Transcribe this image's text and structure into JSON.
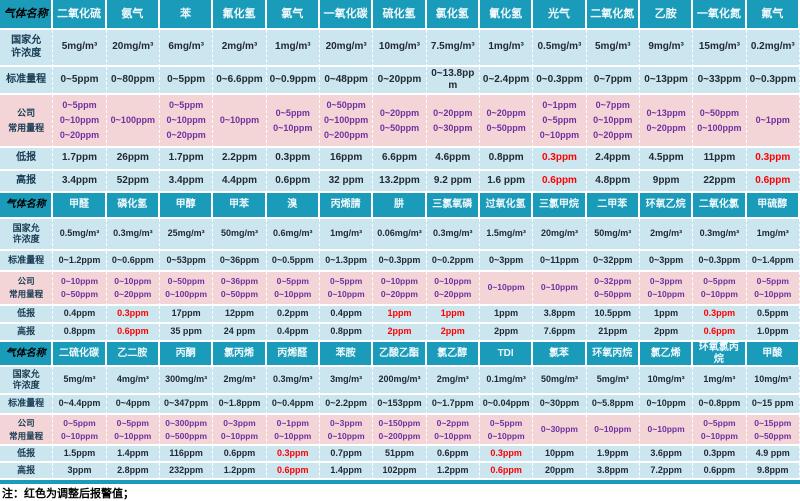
{
  "note": "注：红色为调整后报警值；",
  "colors": {
    "header_teal": "#1b9bba",
    "row_blue": "#cce6ef",
    "row_pink": "#f4d5d7",
    "range_purple": "#7030a0",
    "alarm_red": "#ff0000"
  },
  "row_labels": {
    "gas_name": "气体名称",
    "national": [
      "国家允",
      "许浓度"
    ],
    "standard": [
      "标准量程"
    ],
    "company": [
      "公司",
      "常用量程"
    ],
    "low": [
      "低报"
    ],
    "high": [
      "高报"
    ]
  },
  "sections": [
    {
      "gases": [
        {
          "name": "二氧化硫",
          "national": "5mg/m³",
          "standard": "0~5ppm",
          "company": [
            "0~5ppm",
            "0~10ppm",
            "0~20ppm"
          ],
          "low": "1.7ppm",
          "low_red": false,
          "high": "3.4ppm",
          "high_red": false
        },
        {
          "name": "氨气",
          "national": "20mg/m³",
          "standard": "0~80ppm",
          "company": [
            "0~100ppm"
          ],
          "low": "26ppm",
          "low_red": false,
          "high": "52ppm",
          "high_red": false
        },
        {
          "name": "苯",
          "national": "6mg/m³",
          "standard": "0~5ppm",
          "company": [
            "0~5ppm",
            "0~10ppm",
            "0~20ppm"
          ],
          "low": "1.7ppm",
          "low_red": false,
          "high": "3.4ppm",
          "high_red": false
        },
        {
          "name": "氟化氢",
          "national": "2mg/m³",
          "standard": "0~6.6ppm",
          "company": [
            "0~10ppm"
          ],
          "low": "2.2ppm",
          "low_red": false,
          "high": "4.4ppm",
          "high_red": false
        },
        {
          "name": "氯气",
          "national": "1mg/m³",
          "standard": "0~0.9ppm",
          "company": [
            "0~5ppm",
            "0~10ppm"
          ],
          "low": "0.3ppm",
          "low_red": false,
          "high": "0.6ppm",
          "high_red": false
        },
        {
          "name": "一氧化碳",
          "national": "20mg/m³",
          "standard": "0~48ppm",
          "company": [
            "0~50ppm",
            "0~100ppm",
            "0~200ppm"
          ],
          "low": "16ppm",
          "low_red": false,
          "high": "32 ppm",
          "high_red": false
        },
        {
          "name": "硫化氢",
          "national": "10mg/m³",
          "standard": "0~20ppm",
          "company": [
            "0~20ppm",
            "0~50ppm"
          ],
          "low": "6.6ppm",
          "low_red": false,
          "high": "13.2ppm",
          "high_red": false
        },
        {
          "name": "氯化氢",
          "national": "7.5mg/m³",
          "standard": "0~13.8ppm",
          "company": [
            "0~20ppm",
            "0~30ppm"
          ],
          "low": "4.6ppm",
          "low_red": false,
          "high": "9.2 ppm",
          "high_red": false
        },
        {
          "name": "氰化氢",
          "national": "1mg/m³",
          "standard": "0~2.4ppm",
          "company": [
            "0~20ppm",
            "0~50ppm"
          ],
          "low": "0.8ppm",
          "low_red": false,
          "high": "1.6 ppm",
          "high_red": false
        },
        {
          "name": "光气",
          "national": "0.5mg/m³",
          "standard": "0~0.3ppm",
          "company": [
            "0~1ppm",
            "0~5ppm",
            "0~10ppm"
          ],
          "low": "0.3ppm",
          "low_red": true,
          "high": "0.6ppm",
          "high_red": true
        },
        {
          "name": "二氧化氮",
          "national": "5mg/m³",
          "standard": "0~7ppm",
          "company": [
            "0~7ppm",
            "0~10ppm",
            "0~20ppm"
          ],
          "low": "2.4ppm",
          "low_red": false,
          "high": "4.8ppm",
          "high_red": false
        },
        {
          "name": "乙胺",
          "national": "9mg/m³",
          "standard": "0~13ppm",
          "company": [
            "0~13ppm",
            "0~20ppm"
          ],
          "low": "4.5ppm",
          "low_red": false,
          "high": "9ppm",
          "high_red": false
        },
        {
          "name": "一氧化氮",
          "national": "15mg/m³",
          "standard": "0~33ppm",
          "company": [
            "0~50ppm",
            "0~100ppm"
          ],
          "low": "11ppm",
          "low_red": false,
          "high": "22ppm",
          "high_red": false
        },
        {
          "name": "氟气",
          "national": "0.2mg/m³",
          "standard": "0~0.3ppm",
          "company": [
            "0~1ppm"
          ],
          "low": "0.3ppm",
          "low_red": true,
          "high": "0.6ppm",
          "high_red": true
        }
      ]
    },
    {
      "gases": [
        {
          "name": "甲醛",
          "national": "0.5mg/m³",
          "standard": "0~1.2ppm",
          "company": [
            "0~10ppm",
            "0~50ppm"
          ],
          "low": "0.4ppm",
          "low_red": false,
          "high": "0.8ppm",
          "high_red": false
        },
        {
          "name": "磷化氢",
          "national": "0.3mg/m³",
          "standard": "0~0.6ppm",
          "company": [
            "0~10ppm",
            "0~20ppm"
          ],
          "low": "0.3ppm",
          "low_red": true,
          "high": "0.6ppm",
          "high_red": true
        },
        {
          "name": "甲醇",
          "national": "25mg/m³",
          "standard": "0~53ppm",
          "company": [
            "0~50ppm",
            "0~100ppm"
          ],
          "low": "17ppm",
          "low_red": false,
          "high": "35 ppm",
          "high_red": false
        },
        {
          "name": "甲苯",
          "national": "50mg/m³",
          "standard": "0~36ppm",
          "company": [
            "0~36ppm",
            "0~50ppm"
          ],
          "low": "12ppm",
          "low_red": false,
          "high": "24 ppm",
          "high_red": false
        },
        {
          "name": "溴",
          "national": "0.6mg/m³",
          "standard": "0~0.5ppm",
          "company": [
            "0~5ppm",
            "0~10ppm"
          ],
          "low": "0.2ppm",
          "low_red": false,
          "high": "0.4ppm",
          "high_red": false
        },
        {
          "name": "丙烯腈",
          "national": "1mg/m³",
          "standard": "0~1.3ppm",
          "company": [
            "0~5ppm",
            "0~10ppm"
          ],
          "low": "0.4ppm",
          "low_red": false,
          "high": "0.8ppm",
          "high_red": false
        },
        {
          "name": "肼",
          "national": "0.06mg/m³",
          "standard": "0~0.3ppm",
          "company": [
            "0~10ppm",
            "0~20ppm"
          ],
          "low": "1ppm",
          "low_red": true,
          "high": "2ppm",
          "high_red": true
        },
        {
          "name": "三氯氧磷",
          "national": "0.3mg/m³",
          "standard": "0~0.2ppm",
          "company": [
            "0~10ppm",
            "0~20ppm"
          ],
          "low": "1ppm",
          "low_red": true,
          "high": "2ppm",
          "high_red": true
        },
        {
          "name": "过氧化氢",
          "national": "1.5mg/m³",
          "standard": "0~3ppm",
          "company": [
            "0~10ppm"
          ],
          "low": "1ppm",
          "low_red": false,
          "high": "2ppm",
          "high_red": false
        },
        {
          "name": "三氯甲烷",
          "national": "20mg/m³",
          "standard": "0~11ppm",
          "company": [
            "0~10ppm"
          ],
          "low": "3.8ppm",
          "low_red": false,
          "high": "7.6ppm",
          "high_red": false
        },
        {
          "name": "二甲苯",
          "national": "50mg/m³",
          "standard": "0~32ppm",
          "company": [
            "0~32ppm",
            "0~50ppm"
          ],
          "low": "10.5ppm",
          "low_red": false,
          "high": "21ppm",
          "high_red": false
        },
        {
          "name": "环氧乙烷",
          "national": "2mg/m³",
          "standard": "0~3ppm",
          "company": [
            "0~3ppm",
            "0~10ppm"
          ],
          "low": "1ppm",
          "low_red": false,
          "high": "2ppm",
          "high_red": false
        },
        {
          "name": "二氧化氯",
          "national": "0.3mg/m³",
          "standard": "0~0.3ppm",
          "company": [
            "0~5ppm",
            "0~10ppm"
          ],
          "low": "0.3ppm",
          "low_red": true,
          "high": "0.6ppm",
          "high_red": true
        },
        {
          "name": "甲硫醇",
          "national": "1mg/m³",
          "standard": "0~1.4ppm",
          "company": [
            "0~5ppm",
            "0~10ppm"
          ],
          "low": "0.5ppm",
          "low_red": false,
          "high": "1.0ppm",
          "high_red": false
        }
      ]
    },
    {
      "gases": [
        {
          "name": "二硫化碳",
          "national": "5mg/m³",
          "standard": "0~4.4ppm",
          "company": [
            "0~5ppm",
            "0~10ppm"
          ],
          "low": "1.5ppm",
          "low_red": false,
          "high": "3ppm",
          "high_red": false
        },
        {
          "name": "乙二胺",
          "national": "4mg/m³",
          "standard": "0~4ppm",
          "company": [
            "0~5ppm",
            "0~10ppm"
          ],
          "low": "1.4ppm",
          "low_red": false,
          "high": "2.8ppm",
          "high_red": false
        },
        {
          "name": "丙酮",
          "national": "300mg/m³",
          "standard": "0~347ppm",
          "company": [
            "0~300ppm",
            "0~500ppm"
          ],
          "low": "116ppm",
          "low_red": false,
          "high": "232ppm",
          "high_red": false
        },
        {
          "name": "氯丙烯",
          "national": "2mg/m³",
          "standard": "0~1.8ppm",
          "company": [
            "0~3ppm",
            "0~10ppm"
          ],
          "low": "0.6ppm",
          "low_red": false,
          "high": "1.2ppm",
          "high_red": false
        },
        {
          "name": "丙烯醛",
          "national": "0.3mg/m³",
          "standard": "0~0.4ppm",
          "company": [
            "0~1ppm",
            "0~10ppm"
          ],
          "low": "0.3ppm",
          "low_red": true,
          "high": "0.6ppm",
          "high_red": true
        },
        {
          "name": "苯胺",
          "national": "3mg/m³",
          "standard": "0~2.2ppm",
          "company": [
            "0~3ppm",
            "0~10ppm"
          ],
          "low": "0.7ppm",
          "low_red": false,
          "high": "1.4ppm",
          "high_red": false
        },
        {
          "name": "乙酸乙酯",
          "national": "200mg/m³",
          "standard": "0~153ppm",
          "company": [
            "0~150ppm",
            "0~200ppm"
          ],
          "low": "51ppm",
          "low_red": false,
          "high": "102ppm",
          "high_red": false
        },
        {
          "name": "氯乙醇",
          "national": "2mg/m³",
          "standard": "0~1.7ppm",
          "company": [
            "0~2ppm",
            "0~10ppm"
          ],
          "low": "0.6ppm",
          "low_red": false,
          "high": "1.2ppm",
          "high_red": false
        },
        {
          "name": "TDI",
          "national": "0.1mg/m³",
          "standard": "0~0.04ppm",
          "company": [
            "0~5ppm",
            "0~10ppm"
          ],
          "low": "0.3ppm",
          "low_red": true,
          "high": "0.6ppm",
          "high_red": true
        },
        {
          "name": "氯苯",
          "national": "50mg/m³",
          "standard": "0~30ppm",
          "company": [
            "0~30ppm"
          ],
          "low": "10ppm",
          "low_red": false,
          "high": "20ppm",
          "high_red": false
        },
        {
          "name": "环氧丙烷",
          "national": "5mg/m³",
          "standard": "0~5.8ppm",
          "company": [
            "0~10ppm"
          ],
          "low": "1.9ppm",
          "low_red": false,
          "high": "3.8ppm",
          "high_red": false
        },
        {
          "name": "氯乙烯",
          "national": "10mg/m³",
          "standard": "0~10ppm",
          "company": [
            "0~10ppm"
          ],
          "low": "3.6ppm",
          "low_red": false,
          "high": "7.2ppm",
          "high_red": false
        },
        {
          "name": "环氧氯丙烷",
          "national": "1mg/m³",
          "standard": "0~0.8ppm",
          "company": [
            "0~5ppm",
            "0~10ppm"
          ],
          "low": "0.3ppm",
          "low_red": false,
          "high": "0.6ppm",
          "high_red": false
        },
        {
          "name": "甲酸",
          "national": "10mg/m³",
          "standard": "0~15 ppm",
          "company": [
            "0~15ppm",
            "0~50ppm"
          ],
          "low": "4.9 ppm",
          "low_red": false,
          "high": "9.8ppm",
          "high_red": false
        }
      ]
    }
  ]
}
